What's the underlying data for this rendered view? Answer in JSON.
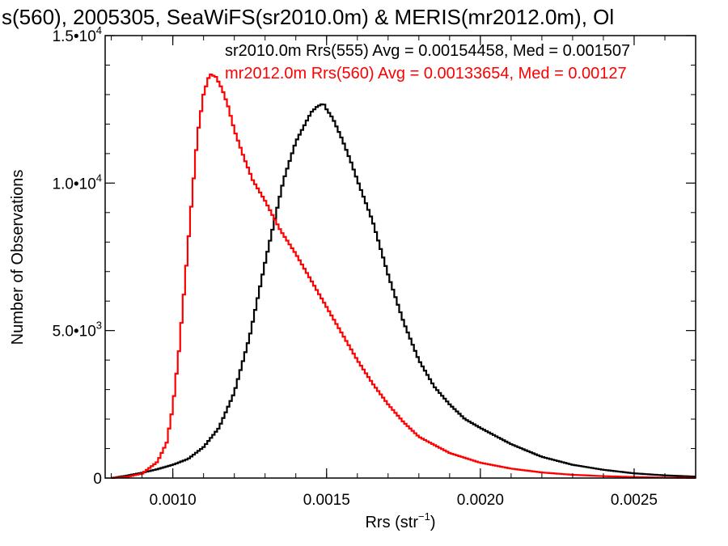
{
  "chart_data": {
    "type": "line",
    "title": "s(560), 2005305, SeaWiFS(sr2010.0m) & MERIS(mr2012.0m), Ol",
    "xlabel": "Rrs (str",
    "xlabel_sup": "−1",
    "xlabel_suffix": ")",
    "ylabel": "Number of Observations",
    "xlim": [
      0.00078,
      0.0027
    ],
    "ylim": [
      0,
      15000
    ],
    "x_ticks": [
      {
        "value": 0.001,
        "label": "0.0010"
      },
      {
        "value": 0.0015,
        "label": "0.0015"
      },
      {
        "value": 0.002,
        "label": "0.0020"
      },
      {
        "value": 0.0025,
        "label": "0.0025"
      }
    ],
    "y_ticks": [
      {
        "value": 0,
        "mant": "0",
        "exp": ""
      },
      {
        "value": 5000,
        "mant": "5.0•10",
        "exp": "3"
      },
      {
        "value": 10000,
        "mant": "1.0•10",
        "exp": "4"
      },
      {
        "value": 15000,
        "mant": "1.5•10",
        "exp": "4"
      }
    ],
    "legend_placement": "top-right",
    "grid": false,
    "series": [
      {
        "name": "sr2010.0m Rrs(555)",
        "legend": "sr2010.0m Rrs(555) Avg = 0.00154458, Med = 0.001507",
        "color": "#000000",
        "x": [
          0.0008,
          0.00085,
          0.0009,
          0.00095,
          0.001,
          0.00105,
          0.0011,
          0.00115,
          0.0012,
          0.00125,
          0.0013,
          0.00133,
          0.00136,
          0.0014,
          0.00143,
          0.00145,
          0.00147,
          0.00149,
          0.0015,
          0.00152,
          0.00155,
          0.00158,
          0.0016,
          0.00165,
          0.0017,
          0.00175,
          0.0018,
          0.00185,
          0.0019,
          0.00195,
          0.002,
          0.0021,
          0.0022,
          0.0023,
          0.0024,
          0.0025,
          0.0026,
          0.0027
        ],
        "y": [
          0,
          80,
          180,
          300,
          450,
          650,
          1050,
          1700,
          2900,
          4800,
          7300,
          8700,
          10100,
          11400,
          12000,
          12400,
          12600,
          12700,
          12500,
          12200,
          11500,
          10700,
          10100,
          8700,
          6900,
          5300,
          4000,
          3100,
          2500,
          2000,
          1700,
          1150,
          720,
          450,
          280,
          160,
          90,
          50
        ]
      },
      {
        "name": "mr2012.0m Rrs(560)",
        "legend": "mr2012.0m Rrs(560) Avg = 0.00133654, Med = 0.00127",
        "color": "#ff0000",
        "x": [
          0.0008,
          0.00085,
          0.0009,
          0.00095,
          0.00098,
          0.001,
          0.00102,
          0.00104,
          0.00106,
          0.00108,
          0.0011,
          0.00112,
          0.00114,
          0.00116,
          0.00118,
          0.0012,
          0.00123,
          0.00126,
          0.0013,
          0.00135,
          0.0014,
          0.00145,
          0.0015,
          0.00155,
          0.0016,
          0.00165,
          0.0017,
          0.00175,
          0.0018,
          0.0019,
          0.002,
          0.0021,
          0.0022,
          0.0023,
          0.0024,
          0.0025,
          0.0026,
          0.0027
        ],
        "y": [
          0,
          40,
          150,
          550,
          1200,
          2400,
          4300,
          6700,
          9200,
          11600,
          13000,
          13700,
          13600,
          13200,
          12600,
          11800,
          10900,
          10100,
          9400,
          8400,
          7600,
          6700,
          5800,
          4900,
          4000,
          3200,
          2500,
          1900,
          1400,
          850,
          520,
          320,
          190,
          110,
          65,
          35,
          15,
          5
        ]
      }
    ]
  }
}
